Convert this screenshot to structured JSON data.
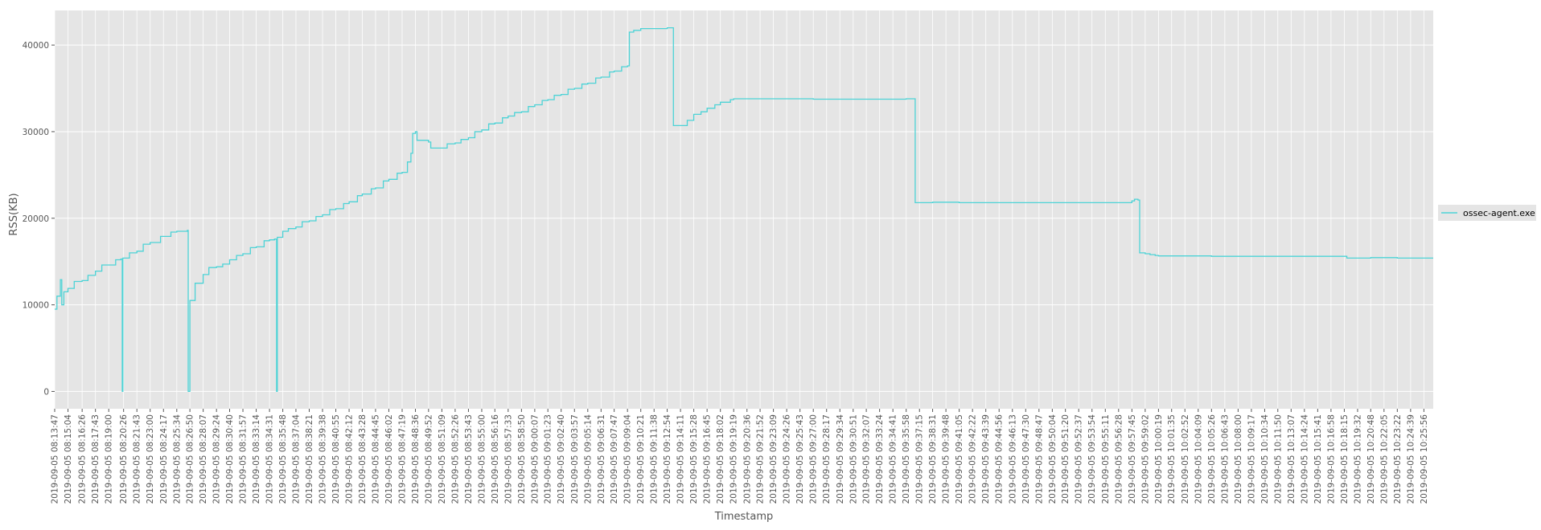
{
  "chart_data": {
    "type": "line",
    "title": "",
    "xlabel": "Timestamp",
    "ylabel": "RSS(KB)",
    "ylim": [
      -2000,
      44000
    ],
    "yticks": [
      0,
      10000,
      20000,
      30000,
      40000
    ],
    "grid": true,
    "legend_position": "right",
    "colors": {
      "series": "#4cd3d6",
      "plot_bg": "#e5e5e5",
      "grid": "#ffffff",
      "text": "#555555"
    },
    "x_tick_labels": [
      "2019-09-05 08:13:47",
      "2019-09-05 08:15:04",
      "2019-09-05 08:16:26",
      "2019-09-05 08:17:43",
      "2019-09-05 08:19:00",
      "2019-09-05 08:20:26",
      "2019-09-05 08:21:43",
      "2019-09-05 08:23:00",
      "2019-09-05 08:24:17",
      "2019-09-05 08:25:34",
      "2019-09-05 08:26:50",
      "2019-09-05 08:28:07",
      "2019-09-05 08:29:24",
      "2019-09-05 08:30:40",
      "2019-09-05 08:31:57",
      "2019-09-05 08:33:14",
      "2019-09-05 08:34:31",
      "2019-09-05 08:35:48",
      "2019-09-05 08:37:04",
      "2019-09-05 08:38:21",
      "2019-09-05 08:39:38",
      "2019-09-05 08:40:55",
      "2019-09-05 08:42:12",
      "2019-09-05 08:43:28",
      "2019-09-05 08:44:45",
      "2019-09-05 08:46:02",
      "2019-09-05 08:47:19",
      "2019-09-05 08:48:36",
      "2019-09-05 08:49:52",
      "2019-09-05 08:51:09",
      "2019-09-05 08:52:26",
      "2019-09-05 08:53:43",
      "2019-09-05 08:55:00",
      "2019-09-05 08:56:16",
      "2019-09-05 08:57:33",
      "2019-09-05 08:58:50",
      "2019-09-05 09:00:07",
      "2019-09-05 09:01:23",
      "2019-09-05 09:02:40",
      "2019-09-05 09:03:57",
      "2019-09-05 09:05:14",
      "2019-09-05 09:06:31",
      "2019-09-05 09:07:47",
      "2019-09-05 09:09:04",
      "2019-09-05 09:10:21",
      "2019-09-05 09:11:38",
      "2019-09-05 09:12:54",
      "2019-09-05 09:14:11",
      "2019-09-05 09:15:28",
      "2019-09-05 09:16:45",
      "2019-09-05 09:18:02",
      "2019-09-05 09:19:19",
      "2019-09-05 09:20:36",
      "2019-09-05 09:21:52",
      "2019-09-05 09:23:09",
      "2019-09-05 09:24:26",
      "2019-09-05 09:25:43",
      "2019-09-05 09:27:00",
      "2019-09-05 09:28:17",
      "2019-09-05 09:29:34",
      "2019-09-05 09:30:51",
      "2019-09-05 09:32:07",
      "2019-09-05 09:33:24",
      "2019-09-05 09:34:41",
      "2019-09-05 09:35:58",
      "2019-09-05 09:37:15",
      "2019-09-05 09:38:31",
      "2019-09-05 09:39:48",
      "2019-09-05 09:41:05",
      "2019-09-05 09:42:22",
      "2019-09-05 09:43:39",
      "2019-09-05 09:44:56",
      "2019-09-05 09:46:13",
      "2019-09-05 09:47:30",
      "2019-09-05 09:48:47",
      "2019-09-05 09:50:04",
      "2019-09-05 09:51:20",
      "2019-09-05 09:52:37",
      "2019-09-05 09:53:54",
      "2019-09-05 09:55:11",
      "2019-09-05 09:56:28",
      "2019-09-05 09:57:45",
      "2019-09-05 09:59:02",
      "2019-09-05 10:00:19",
      "2019-09-05 10:01:35",
      "2019-09-05 10:02:52",
      "2019-09-05 10:04:09",
      "2019-09-05 10:05:26",
      "2019-09-05 10:06:43",
      "2019-09-05 10:08:00",
      "2019-09-05 10:09:17",
      "2019-09-05 10:10:34",
      "2019-09-05 10:11:50",
      "2019-09-05 10:13:07",
      "2019-09-05 10:14:24",
      "2019-09-05 10:15:41",
      "2019-09-05 10:16:58",
      "2019-09-05 10:18:15",
      "2019-09-05 10:19:32",
      "2019-09-05 10:20:48",
      "2019-09-05 10:22:05",
      "2019-09-05 10:23:22",
      "2019-09-05 10:24:39",
      "2019-09-05 10:25:56"
    ],
    "x_range": [
      "2019-09-05 08:13:47",
      "2019-09-05 10:26:50"
    ],
    "series": [
      {
        "name": "ossec-agent.exe",
        "points": [
          [
            "2019-09-05 08:13:47",
            9500
          ],
          [
            "2019-09-05 08:14:00",
            11000
          ],
          [
            "2019-09-05 08:14:20",
            12900
          ],
          [
            "2019-09-05 08:14:28",
            10000
          ],
          [
            "2019-09-05 08:14:40",
            11500
          ],
          [
            "2019-09-05 08:15:04",
            11900
          ],
          [
            "2019-09-05 08:15:40",
            12700
          ],
          [
            "2019-09-05 08:16:26",
            12800
          ],
          [
            "2019-09-05 08:17:00",
            13400
          ],
          [
            "2019-09-05 08:17:43",
            13900
          ],
          [
            "2019-09-05 08:18:20",
            14600
          ],
          [
            "2019-09-05 08:19:00",
            14600
          ],
          [
            "2019-09-05 08:19:40",
            15200
          ],
          [
            "2019-09-05 08:20:10",
            15300
          ],
          [
            "2019-09-05 08:20:18",
            0
          ],
          [
            "2019-09-05 08:20:22",
            15400
          ],
          [
            "2019-09-05 08:20:26",
            15400
          ],
          [
            "2019-09-05 08:21:00",
            16000
          ],
          [
            "2019-09-05 08:21:43",
            16200
          ],
          [
            "2019-09-05 08:22:20",
            17000
          ],
          [
            "2019-09-05 08:23:00",
            17200
          ],
          [
            "2019-09-05 08:24:00",
            17900
          ],
          [
            "2019-09-05 08:24:17",
            17900
          ],
          [
            "2019-09-05 08:25:00",
            18400
          ],
          [
            "2019-09-05 08:25:34",
            18500
          ],
          [
            "2019-09-05 08:26:35",
            18600
          ],
          [
            "2019-09-05 08:26:40",
            0
          ],
          [
            "2019-09-05 08:26:50",
            10500
          ],
          [
            "2019-09-05 08:27:20",
            12500
          ],
          [
            "2019-09-05 08:28:07",
            13500
          ],
          [
            "2019-09-05 08:28:40",
            14300
          ],
          [
            "2019-09-05 08:29:24",
            14400
          ],
          [
            "2019-09-05 08:30:00",
            14700
          ],
          [
            "2019-09-05 08:30:40",
            15200
          ],
          [
            "2019-09-05 08:31:20",
            15700
          ],
          [
            "2019-09-05 08:31:57",
            15900
          ],
          [
            "2019-09-05 08:32:40",
            16600
          ],
          [
            "2019-09-05 08:33:14",
            16700
          ],
          [
            "2019-09-05 08:34:00",
            17400
          ],
          [
            "2019-09-05 08:34:31",
            17500
          ],
          [
            "2019-09-05 08:35:00",
            17600
          ],
          [
            "2019-09-05 08:35:12",
            0
          ],
          [
            "2019-09-05 08:35:16",
            17800
          ],
          [
            "2019-09-05 08:35:48",
            18500
          ],
          [
            "2019-09-05 08:36:20",
            18800
          ],
          [
            "2019-09-05 08:37:04",
            19000
          ],
          [
            "2019-09-05 08:37:40",
            19600
          ],
          [
            "2019-09-05 08:38:21",
            19700
          ],
          [
            "2019-09-05 08:39:00",
            20200
          ],
          [
            "2019-09-05 08:39:38",
            20400
          ],
          [
            "2019-09-05 08:40:20",
            21000
          ],
          [
            "2019-09-05 08:40:55",
            21100
          ],
          [
            "2019-09-05 08:41:40",
            21700
          ],
          [
            "2019-09-05 08:42:12",
            21900
          ],
          [
            "2019-09-05 08:43:00",
            22600
          ],
          [
            "2019-09-05 08:43:28",
            22800
          ],
          [
            "2019-09-05 08:44:20",
            23400
          ],
          [
            "2019-09-05 08:44:45",
            23500
          ],
          [
            "2019-09-05 08:45:30",
            24300
          ],
          [
            "2019-09-05 08:46:02",
            24500
          ],
          [
            "2019-09-05 08:46:50",
            25200
          ],
          [
            "2019-09-05 08:47:19",
            25300
          ],
          [
            "2019-09-05 08:47:50",
            26500
          ],
          [
            "2019-09-05 08:48:10",
            27500
          ],
          [
            "2019-09-05 08:48:20",
            29800
          ],
          [
            "2019-09-05 08:48:36",
            30000
          ],
          [
            "2019-09-05 08:48:45",
            29000
          ],
          [
            "2019-09-05 08:49:52",
            28800
          ],
          [
            "2019-09-05 08:50:05",
            28100
          ],
          [
            "2019-09-05 08:51:09",
            28100
          ],
          [
            "2019-09-05 08:51:40",
            28600
          ],
          [
            "2019-09-05 08:52:26",
            28700
          ],
          [
            "2019-09-05 08:53:00",
            29100
          ],
          [
            "2019-09-05 08:53:43",
            29300
          ],
          [
            "2019-09-05 08:54:20",
            30000
          ],
          [
            "2019-09-05 08:55:00",
            30200
          ],
          [
            "2019-09-05 08:55:40",
            30900
          ],
          [
            "2019-09-05 08:56:16",
            31000
          ],
          [
            "2019-09-05 08:57:00",
            31600
          ],
          [
            "2019-09-05 08:57:33",
            31800
          ],
          [
            "2019-09-05 08:58:10",
            32200
          ],
          [
            "2019-09-05 08:58:50",
            32300
          ],
          [
            "2019-09-05 08:59:30",
            32900
          ],
          [
            "2019-09-05 09:00:07",
            33100
          ],
          [
            "2019-09-05 09:00:50",
            33600
          ],
          [
            "2019-09-05 09:01:23",
            33700
          ],
          [
            "2019-09-05 09:02:00",
            34200
          ],
          [
            "2019-09-05 09:02:40",
            34300
          ],
          [
            "2019-09-05 09:03:20",
            34900
          ],
          [
            "2019-09-05 09:03:57",
            35000
          ],
          [
            "2019-09-05 09:04:40",
            35500
          ],
          [
            "2019-09-05 09:05:14",
            35600
          ],
          [
            "2019-09-05 09:06:00",
            36200
          ],
          [
            "2019-09-05 09:06:31",
            36300
          ],
          [
            "2019-09-05 09:07:20",
            36900
          ],
          [
            "2019-09-05 09:07:47",
            37000
          ],
          [
            "2019-09-05 09:08:30",
            37500
          ],
          [
            "2019-09-05 09:09:04",
            37600
          ],
          [
            "2019-09-05 09:09:15",
            41500
          ],
          [
            "2019-09-05 09:09:40",
            41700
          ],
          [
            "2019-09-05 09:10:21",
            41900
          ],
          [
            "2019-09-05 09:11:38",
            41900
          ],
          [
            "2019-09-05 09:12:54",
            42000
          ],
          [
            "2019-09-05 09:13:25",
            42000
          ],
          [
            "2019-09-05 09:13:30",
            30700
          ],
          [
            "2019-09-05 09:14:11",
            30700
          ],
          [
            "2019-09-05 09:14:50",
            31300
          ],
          [
            "2019-09-05 09:15:28",
            32000
          ],
          [
            "2019-09-05 09:16:10",
            32300
          ],
          [
            "2019-09-05 09:16:45",
            32700
          ],
          [
            "2019-09-05 09:17:30",
            33100
          ],
          [
            "2019-09-05 09:18:02",
            33400
          ],
          [
            "2019-09-05 09:19:00",
            33700
          ],
          [
            "2019-09-05 09:19:19",
            33800
          ],
          [
            "2019-09-05 09:23:09",
            33800
          ],
          [
            "2019-09-05 09:27:00",
            33750
          ],
          [
            "2019-09-05 09:32:07",
            33750
          ],
          [
            "2019-09-05 09:35:58",
            33800
          ],
          [
            "2019-09-05 09:36:40",
            33800
          ],
          [
            "2019-09-05 09:36:50",
            21800
          ],
          [
            "2019-09-05 09:38:31",
            21850
          ],
          [
            "2019-09-05 09:41:05",
            21800
          ],
          [
            "2019-09-05 09:46:13",
            21800
          ],
          [
            "2019-09-05 09:52:37",
            21800
          ],
          [
            "2019-09-05 09:56:28",
            21800
          ],
          [
            "2019-09-05 09:57:45",
            22000
          ],
          [
            "2019-09-05 09:58:00",
            22200
          ],
          [
            "2019-09-05 09:58:20",
            22100
          ],
          [
            "2019-09-05 09:58:30",
            16000
          ],
          [
            "2019-09-05 09:59:02",
            15900
          ],
          [
            "2019-09-05 09:59:30",
            15800
          ],
          [
            "2019-09-05 10:00:00",
            15700
          ],
          [
            "2019-09-05 10:00:19",
            15650
          ],
          [
            "2019-09-05 10:05:26",
            15600
          ],
          [
            "2019-09-05 10:13:07",
            15600
          ],
          [
            "2019-09-05 10:18:15",
            15600
          ],
          [
            "2019-09-05 10:18:30",
            15400
          ],
          [
            "2019-09-05 10:20:48",
            15450
          ],
          [
            "2019-09-05 10:23:22",
            15400
          ],
          [
            "2019-09-05 10:26:50",
            15400
          ]
        ]
      }
    ]
  }
}
